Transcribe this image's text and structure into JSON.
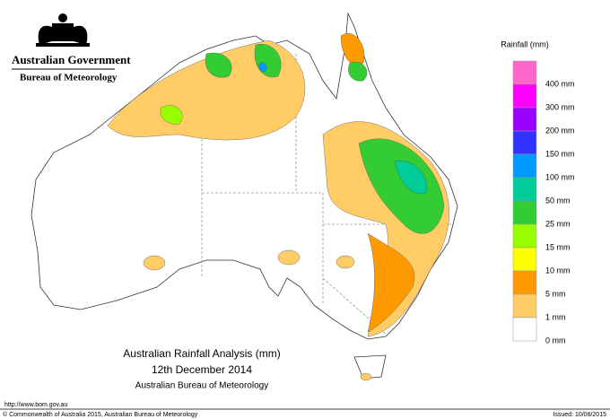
{
  "header": {
    "government": "Australian Government",
    "agency": "Bureau of Meteorology"
  },
  "legend": {
    "title": "Rainfall (mm)",
    "items": [
      {
        "label": "400 mm",
        "color": "#ff66cc"
      },
      {
        "label": "300 mm",
        "color": "#ff00ff"
      },
      {
        "label": "200 mm",
        "color": "#9900ff"
      },
      {
        "label": "150 mm",
        "color": "#3333ff"
      },
      {
        "label": "100 mm",
        "color": "#0099ff"
      },
      {
        "label": "50 mm",
        "color": "#00cc99"
      },
      {
        "label": "25 mm",
        "color": "#33cc33"
      },
      {
        "label": "15 mm",
        "color": "#99ff00"
      },
      {
        "label": "10 mm",
        "color": "#ffff00"
      },
      {
        "label": "5 mm",
        "color": "#ff9900"
      },
      {
        "label": "1 mm",
        "color": "#ffcc66"
      },
      {
        "label": "0 mm",
        "color": "#ffffff"
      }
    ]
  },
  "title": {
    "line1": "Australian Rainfall Analysis (mm)",
    "line2": "12th December 2014",
    "line3": "Australian Bureau of Meteorology"
  },
  "footer": {
    "url": "http://www.bom.gov.au",
    "copyright": "© Commonwealth of Australia 2015, Australian Bureau of Meteorology",
    "issued": "Issued: 10/06/2015"
  }
}
